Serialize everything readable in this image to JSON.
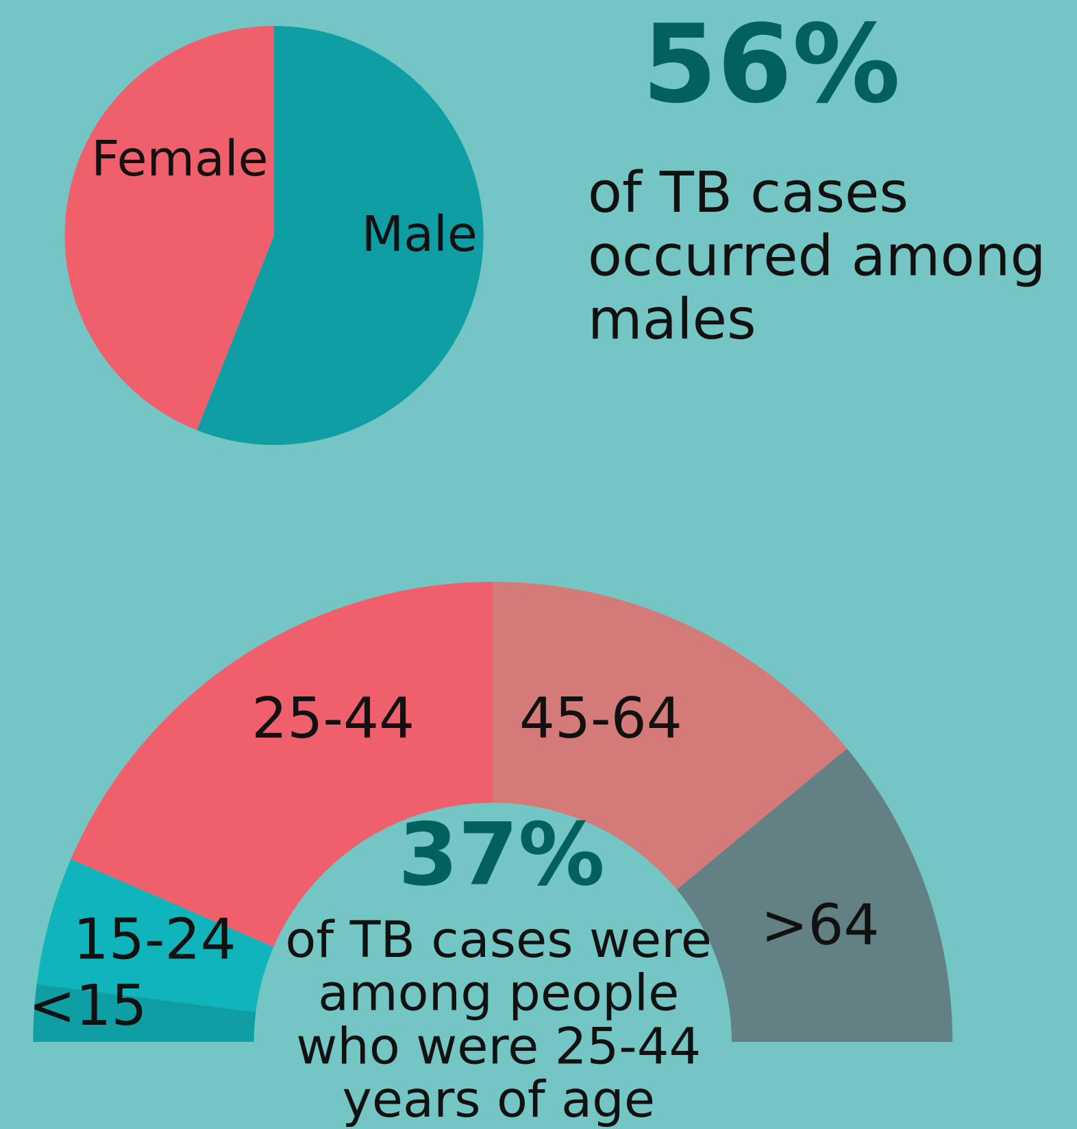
{
  "chart_data": [
    {
      "type": "pie",
      "categories": [
        "Female",
        "Male"
      ],
      "values": [
        44,
        56
      ],
      "value_labels": [
        null,
        "56%"
      ],
      "colors": [
        "#f05f6c",
        "#0f9ea3"
      ],
      "caption": [
        "of TB cases",
        "occurred among",
        "males"
      ]
    },
    {
      "type": "semi-donut",
      "categories": [
        "<15",
        "15-24",
        "25-44",
        "45-64",
        ">64"
      ],
      "values": [
        4,
        9,
        37,
        28,
        22
      ],
      "value_labels": [
        null,
        null,
        "37%",
        null,
        null
      ],
      "colors": [
        "#0f9ea3",
        "#10b5bb",
        "#f05f6c",
        "#d47a78",
        "#638085"
      ],
      "caption": [
        "of TB cases were",
        "among people",
        "who were 25-44",
        "years of age"
      ]
    }
  ]
}
